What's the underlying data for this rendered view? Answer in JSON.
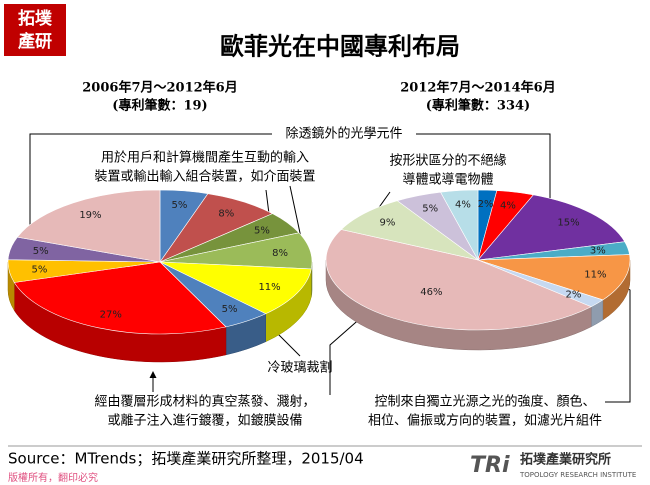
{
  "title": "歐菲光在中國專利布局",
  "logo": [
    "拓墣",
    "產研"
  ],
  "chart_data": [
    {
      "type": "pie",
      "title": "2006年7月～2012年6月",
      "subtitle": "(專利筆數：19)",
      "values": [
        5,
        8,
        5,
        8,
        11,
        5,
        27,
        5,
        5,
        19
      ],
      "value_labels": [
        "5%",
        "8%",
        "5%",
        "8%",
        "11%",
        "5%",
        "27%",
        "5%",
        "5%",
        "19%"
      ],
      "colors": [
        "#4f81bd",
        "#c0504d",
        "#77933c",
        "#9bbb59",
        "#ffff00",
        "#4f81bd",
        "#ff0000",
        "#ffc000",
        "#8064a2",
        "#e6b9b8"
      ]
    },
    {
      "type": "pie",
      "title": "2012年7月～2014年6月",
      "subtitle": "(專利筆數：334)",
      "values": [
        2,
        4,
        15,
        3,
        11,
        2,
        46,
        9,
        5,
        4
      ],
      "value_labels": [
        "2%",
        "4%",
        "15%",
        "3%",
        "11%",
        "2%",
        "46%",
        "9%",
        "5%",
        "4%"
      ],
      "colors": [
        "#0070c0",
        "#ff0000",
        "#7030a0",
        "#4bacc6",
        "#f79646",
        "#c6d9f1",
        "#e6b9b8",
        "#d7e4bd",
        "#ccc1da",
        "#b7dee8"
      ]
    }
  ],
  "annotations": [
    [
      "除透鏡外的光學元件"
    ],
    [
      "用於用戶和計算機間產生互動的輸入",
      "裝置或輸出輸入組合裝置，如介面裝置"
    ],
    [
      "按形狀區分的不絕緣",
      "導體或導電物體"
    ],
    [
      "冷玻璃裁割"
    ],
    [
      "經由覆層形成材料的真空蒸發、濺射，",
      "或離子注入進行鍍覆，如鍍膜設備"
    ],
    [
      "控制來自獨立光源之光的強度、顏色、",
      "相位、偏振或方向的裝置，如濾光片組件"
    ]
  ],
  "source": "Source：MTrends；拓墣產業研究所整理，2015/04",
  "footer": "版權所有，翻印必究",
  "brand": {
    "mark": "TRi",
    "name": "拓墣產業研究所",
    "english": "TOPOLOGY RESEARCH INSTITUTE"
  }
}
